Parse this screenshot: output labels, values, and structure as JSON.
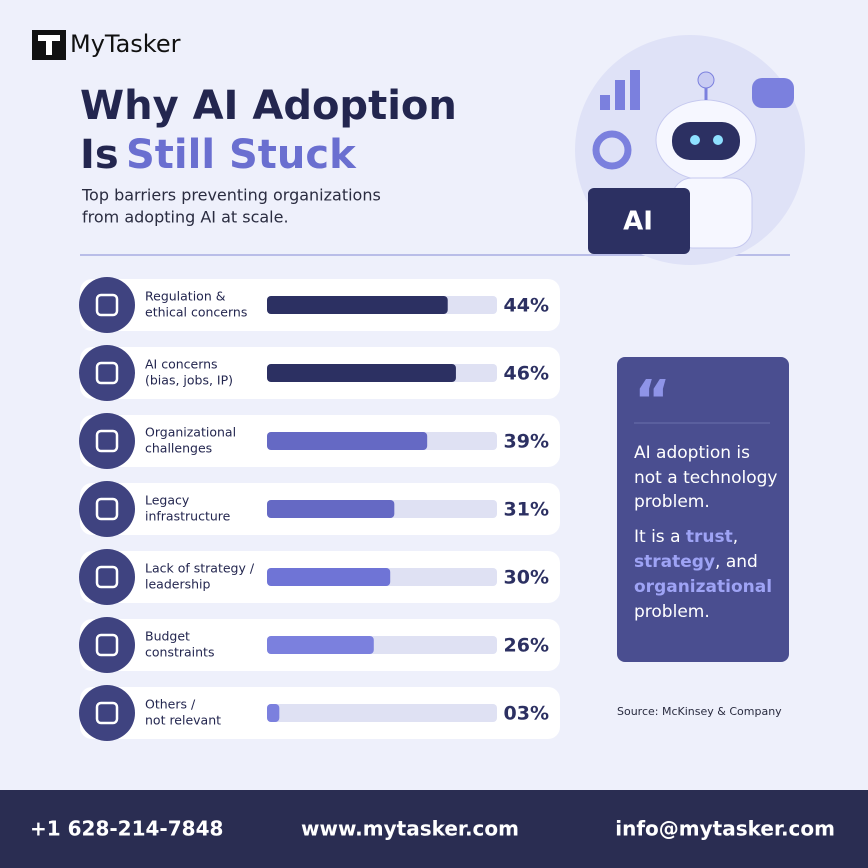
{
  "header": {
    "brand": "MyTasker",
    "title_line1": "Why AI Adoption",
    "title_line2a": "Is",
    "title_line2b": "Still Stuck",
    "subtitle": [
      "Top barriers preventing organizations",
      "from adopting AI at scale."
    ],
    "illustration_label": "AI"
  },
  "chart_data": {
    "type": "hbar",
    "categories": [
      [
        "Regulation &",
        "ethical concerns"
      ],
      [
        "AI concerns",
        "(bias, jobs, IP)"
      ],
      [
        "Organizational",
        "challenges"
      ],
      [
        "Legacy",
        "infrastructure"
      ],
      [
        "Lack of strategy /",
        "leadership"
      ],
      [
        "Budget",
        "constraints"
      ],
      [
        "Others /",
        "not relevant"
      ]
    ],
    "values": [
      44,
      46,
      39,
      31,
      30,
      26,
      3
    ],
    "value_labels": [
      "44%",
      "46%",
      "39%",
      "31%",
      "30%",
      "26%",
      "03%"
    ],
    "colors": [
      "#2c3062",
      "#2c3062",
      "#6569c4",
      "#6569c4",
      "#6f74d6",
      "#7b80de",
      "#7b80de"
    ],
    "xlim": [
      0,
      56
    ]
  },
  "quote": {
    "mark": "“",
    "line1": [
      "AI adoption is",
      "not a technology",
      "problem."
    ],
    "line2": [
      [
        {
          "text": "It is a "
        },
        {
          "text": "trust",
          "highlight": true
        },
        {
          "text": ","
        }
      ],
      [
        {
          "text": "strategy",
          "highlight": true
        },
        {
          "text": ", and"
        }
      ],
      [
        {
          "text": "organizational",
          "highlight": true
        }
      ],
      [
        {
          "text": "problem."
        }
      ]
    ]
  },
  "source": "Source: McKinsey & Company",
  "footer": {
    "phone": "+1 628-214-7848",
    "website": "www.mytasker.com",
    "email": "info@mytasker.com"
  }
}
